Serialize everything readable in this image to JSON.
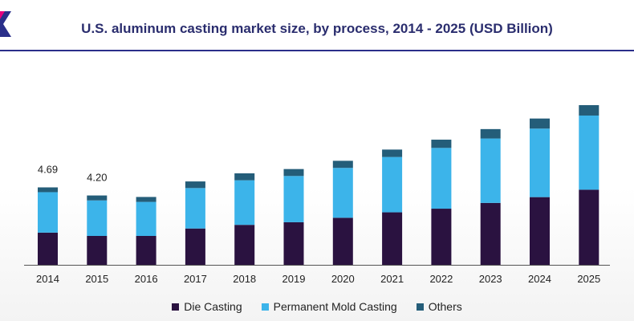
{
  "colors": {
    "die_casting": "#2a1240",
    "permanent_mold": "#3cb4ea",
    "others": "#245d79",
    "title": "#2a2d6e",
    "accent": "#2a2f8a"
  },
  "chart_data": {
    "type": "bar",
    "stacked": true,
    "title": "U.S. aluminum casting market size, by process, 2014 - 2025 (USD Billion)",
    "categories": [
      "2014",
      "2015",
      "2016",
      "2017",
      "2018",
      "2019",
      "2020",
      "2021",
      "2022",
      "2023",
      "2024",
      "2025"
    ],
    "series": [
      {
        "name": "Die Casting",
        "values": [
          1.95,
          1.75,
          1.75,
          2.2,
          2.42,
          2.58,
          2.85,
          3.18,
          3.4,
          3.75,
          4.1,
          4.55
        ]
      },
      {
        "name": "Permanent Mold Casting",
        "values": [
          2.45,
          2.15,
          2.06,
          2.45,
          2.7,
          2.8,
          3.02,
          3.35,
          3.68,
          3.9,
          4.15,
          4.49
        ]
      },
      {
        "name": "Others",
        "values": [
          0.29,
          0.3,
          0.3,
          0.4,
          0.42,
          0.42,
          0.43,
          0.45,
          0.5,
          0.57,
          0.61,
          0.63
        ]
      }
    ],
    "data_labels": [
      {
        "category": "2014",
        "text": "4.69"
      },
      {
        "category": "2015",
        "text": "4.20"
      }
    ],
    "legend": "bottom",
    "grid": false,
    "ylim": [
      0,
      10.4
    ]
  }
}
